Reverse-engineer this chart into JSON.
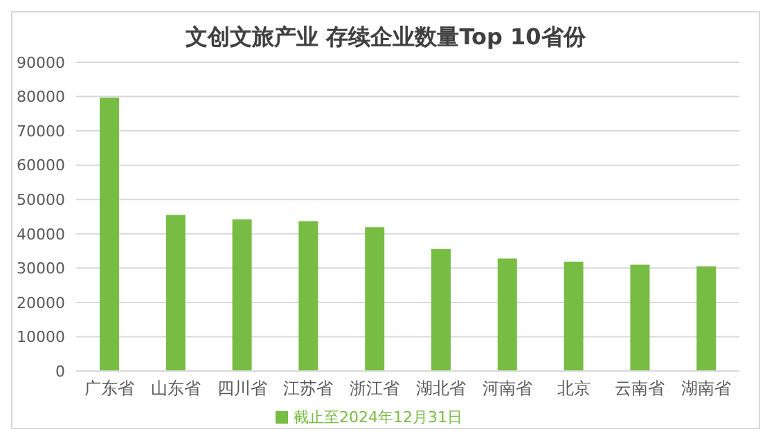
{
  "chart_data": {
    "type": "bar",
    "title": "文创文旅产业 存续企业数量Top 10省份",
    "categories": [
      "广东省",
      "山东省",
      "四川省",
      "江苏省",
      "浙江省",
      "湖北省",
      "河南省",
      "北京",
      "云南省",
      "湖南省"
    ],
    "series": [
      {
        "name": "截止至2024年12月31日",
        "color": "#77bc43",
        "values": [
          79700,
          45500,
          44200,
          43700,
          41900,
          35500,
          32800,
          31900,
          31000,
          30500
        ]
      }
    ],
    "ylim": [
      0,
      90000
    ],
    "yticks": [
      0,
      10000,
      20000,
      30000,
      40000,
      50000,
      60000,
      70000,
      80000,
      90000
    ],
    "grid": "y",
    "legend": "bottom"
  }
}
